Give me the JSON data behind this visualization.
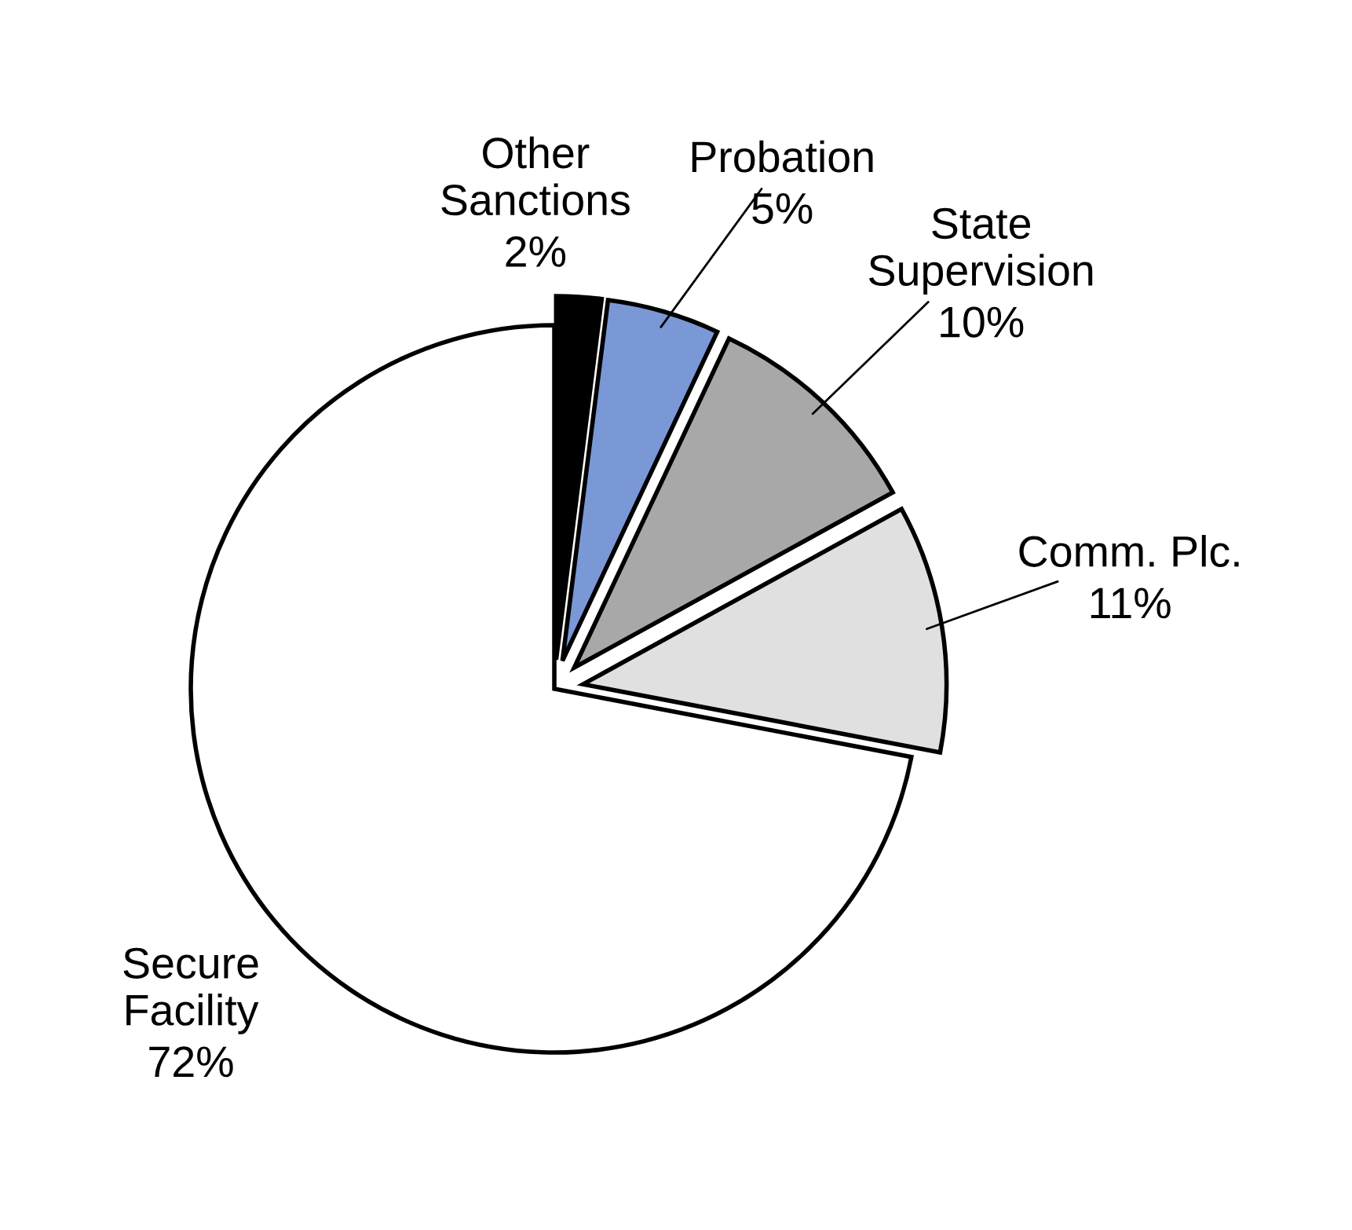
{
  "chart_data": {
    "type": "pie",
    "categories": [
      "Other\nSanctions",
      "Probation",
      "State\nSupervision",
      "Comm. Plc.",
      "Secure\nFacility"
    ],
    "values": [
      2,
      5,
      10,
      11,
      72
    ],
    "value_labels": [
      "2%",
      "5%",
      "10%",
      "11%",
      "72%"
    ],
    "colors": [
      "#000000",
      "#7a98d6",
      "#a8a8a8",
      "#e0e0e0",
      "#ffffff"
    ]
  }
}
